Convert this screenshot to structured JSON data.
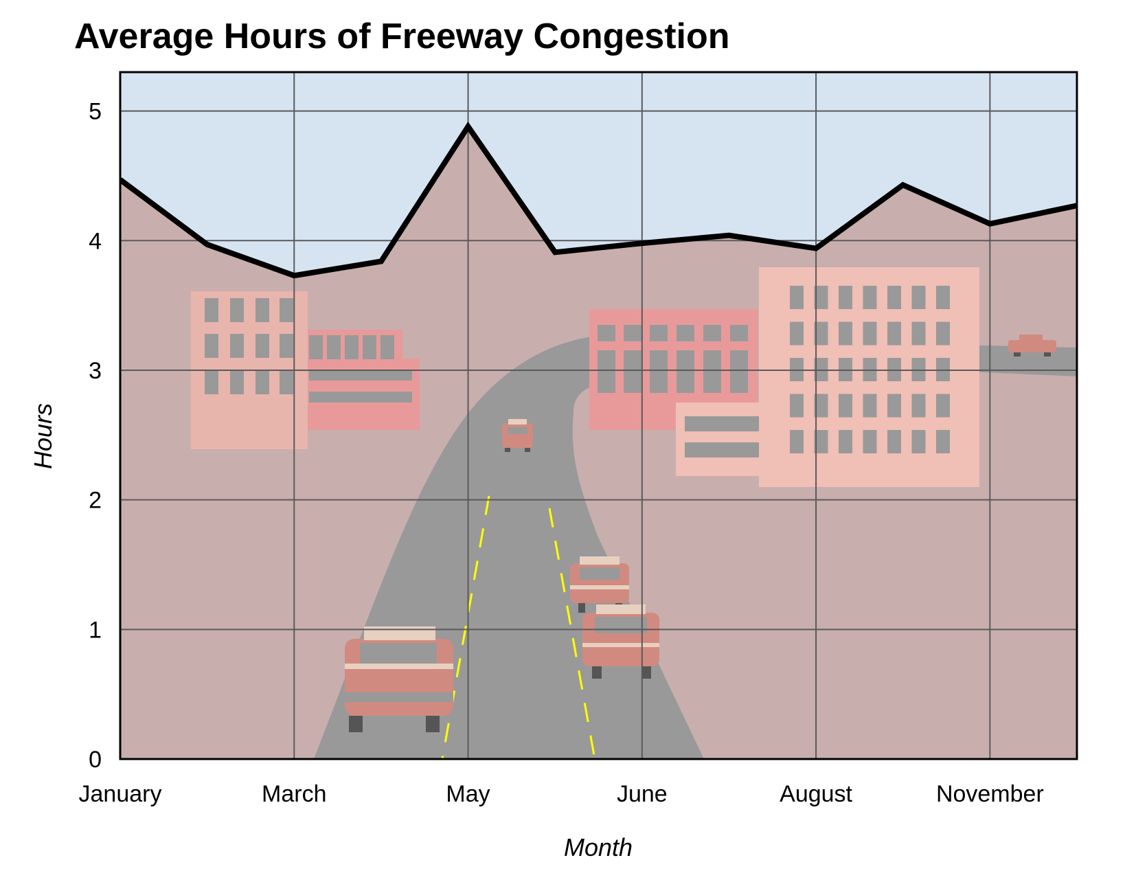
{
  "chart_data": {
    "type": "area",
    "title": "Average Hours of Freeway Congestion",
    "xlabel": "Month",
    "ylabel": "Hours",
    "ylim": [
      0,
      5.3
    ],
    "yticks": [
      0,
      1,
      2,
      3,
      4,
      5
    ],
    "xtick_labels": [
      "January",
      "March",
      "May",
      "June",
      "August",
      "November"
    ],
    "grid": true,
    "series": [
      {
        "values": [
          4.47,
          3.97,
          3.73,
          3.84,
          4.88,
          3.91,
          3.98,
          4.04,
          3.94,
          4.43,
          4.13,
          4.27
        ]
      }
    ],
    "colors": {
      "sky": "#d6e4f2",
      "area": "#c9aeae",
      "line": "#000000",
      "grid": "#5a5a5a",
      "road": "#999999",
      "lane_marking": "#ffff00",
      "car": "#d18a80",
      "building_light": "#e8b5ad",
      "building_dark": "#e89a9a",
      "building_pale": "#f0bfb6",
      "window": "#999999"
    }
  }
}
